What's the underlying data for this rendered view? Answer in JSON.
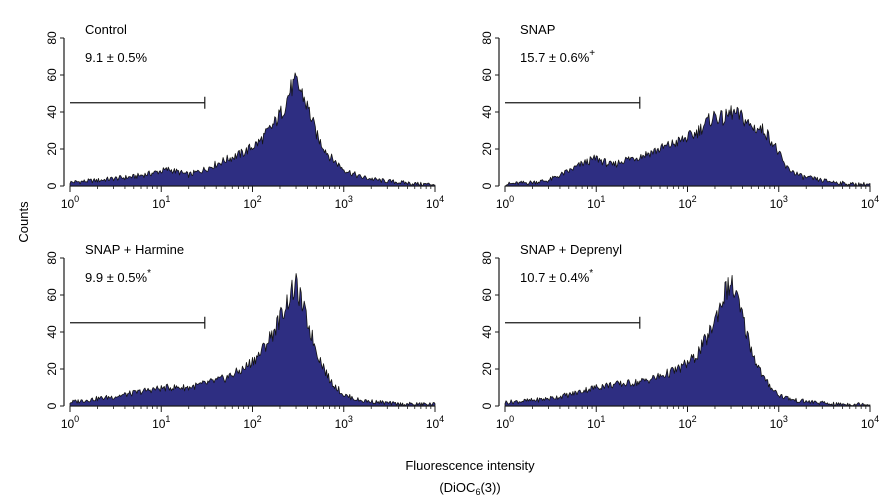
{
  "figure": {
    "ylabel": "Counts",
    "xlabel": "Fluorescence intensity",
    "xlabel_dye_main": "(DiOC",
    "xlabel_dye_sub": "6",
    "xlabel_dye_tail": "(3))"
  },
  "chart_data": [
    {
      "type": "area",
      "label": "Control",
      "stat": "9.1 ± 0.5%",
      "stat_mark": "",
      "xscale": "log",
      "xlim": [
        1,
        10000
      ],
      "ylim": [
        0,
        80
      ],
      "x_ticks": [
        "0",
        "1",
        "2",
        "3",
        "4"
      ],
      "x_tick_base": "10",
      "y_ticks": [
        "0",
        "20",
        "40",
        "60",
        "80"
      ],
      "gate": {
        "x": [
          1,
          30
        ],
        "y": 45
      },
      "x": [
        1,
        2,
        3,
        5,
        8,
        12,
        20,
        30,
        50,
        80,
        120,
        170,
        220,
        260,
        300,
        350,
        420,
        520,
        700,
        1000,
        1500,
        2500,
        4000,
        7000,
        10000
      ],
      "y": [
        2,
        3,
        4,
        5,
        7,
        9,
        6,
        9,
        14,
        18,
        24,
        33,
        42,
        52,
        56,
        50,
        40,
        26,
        16,
        9,
        5,
        3,
        2,
        1,
        1
      ]
    },
    {
      "type": "area",
      "label": "SNAP",
      "stat": "15.7 ± 0.6%",
      "stat_mark": "+",
      "xscale": "log",
      "xlim": [
        1,
        10000
      ],
      "ylim": [
        0,
        80
      ],
      "x_ticks": [
        "0",
        "1",
        "2",
        "3",
        "4"
      ],
      "x_tick_base": "10",
      "y_ticks": [
        "0",
        "20",
        "40",
        "60",
        "80"
      ],
      "gate": {
        "x": [
          1,
          30
        ],
        "y": 45
      },
      "x": [
        1,
        2,
        3,
        5,
        7,
        10,
        15,
        20,
        30,
        50,
        80,
        120,
        160,
        200,
        250,
        300,
        400,
        500,
        700,
        900,
        1200,
        1800,
        3000,
        6000,
        10000
      ],
      "y": [
        1,
        2,
        3,
        8,
        12,
        15,
        11,
        14,
        16,
        20,
        24,
        28,
        34,
        38,
        36,
        40,
        37,
        32,
        30,
        22,
        10,
        5,
        3,
        1,
        1
      ]
    },
    {
      "type": "area",
      "label": "SNAP + Harmine",
      "stat": "9.9 ± 0.5%",
      "stat_mark": "*",
      "xscale": "log",
      "xlim": [
        1,
        10000
      ],
      "ylim": [
        0,
        80
      ],
      "x_ticks": [
        "0",
        "1",
        "2",
        "3",
        "4"
      ],
      "x_tick_base": "10",
      "y_ticks": [
        "0",
        "20",
        "40",
        "60",
        "80"
      ],
      "gate": {
        "x": [
          1,
          30
        ],
        "y": 45
      },
      "x": [
        1,
        2,
        3,
        5,
        8,
        12,
        20,
        30,
        50,
        80,
        120,
        170,
        220,
        260,
        300,
        350,
        420,
        520,
        700,
        1000,
        1500,
        2500,
        4000,
        7000,
        10000
      ],
      "y": [
        2,
        4,
        5,
        7,
        9,
        10,
        10,
        12,
        15,
        20,
        28,
        40,
        52,
        60,
        65,
        55,
        42,
        28,
        14,
        6,
        3,
        2,
        1,
        1,
        1
      ]
    },
    {
      "type": "area",
      "label": "SNAP + Deprenyl",
      "stat": "10.7 ± 0.4%",
      "stat_mark": "*",
      "xscale": "log",
      "xlim": [
        1,
        10000
      ],
      "ylim": [
        0,
        80
      ],
      "x_ticks": [
        "0",
        "1",
        "2",
        "3",
        "4"
      ],
      "x_tick_base": "10",
      "y_ticks": [
        "0",
        "20",
        "40",
        "60",
        "80"
      ],
      "gate": {
        "x": [
          1,
          30
        ],
        "y": 45
      },
      "x": [
        1,
        2,
        3,
        5,
        8,
        12,
        20,
        30,
        50,
        80,
        120,
        170,
        220,
        260,
        300,
        350,
        420,
        520,
        700,
        1000,
        1500,
        2500,
        4000,
        7000,
        10000
      ],
      "y": [
        2,
        3,
        4,
        6,
        9,
        11,
        12,
        13,
        16,
        20,
        26,
        38,
        52,
        62,
        66,
        58,
        44,
        28,
        14,
        6,
        3,
        2,
        1,
        1,
        1
      ]
    }
  ],
  "colors": {
    "fill": "#2e2e82",
    "stroke": "#141414",
    "axis": "#1a1a1a"
  }
}
